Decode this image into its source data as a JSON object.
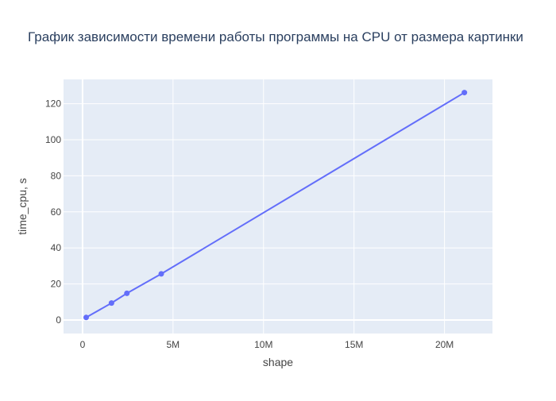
{
  "chart_data": {
    "type": "line",
    "title": "График зависимости времени работы программы на CPU от размера картинки",
    "xlabel": "shape",
    "ylabel": "time_cpu, s",
    "xlim": [
      -1050000,
      22650000
    ],
    "ylim": [
      -7.5,
      133.5
    ],
    "x_ticks": [
      {
        "value": 0,
        "label": "0"
      },
      {
        "value": 5000000,
        "label": "5M"
      },
      {
        "value": 10000000,
        "label": "10M"
      },
      {
        "value": 15000000,
        "label": "15M"
      },
      {
        "value": 20000000,
        "label": "20M"
      }
    ],
    "y_ticks": [
      {
        "value": 0,
        "label": "0"
      },
      {
        "value": 20,
        "label": "20"
      },
      {
        "value": 40,
        "label": "40"
      },
      {
        "value": 60,
        "label": "60"
      },
      {
        "value": 80,
        "label": "80"
      },
      {
        "value": 100,
        "label": "100"
      },
      {
        "value": 120,
        "label": "120"
      }
    ],
    "grid": true,
    "mode": "lines+markers",
    "series": [
      {
        "color": "#636efa",
        "points": [
          {
            "x": 200000,
            "y": 1.4
          },
          {
            "x": 1600000,
            "y": 9.4
          },
          {
            "x": 2450000,
            "y": 14.8
          },
          {
            "x": 4350000,
            "y": 25.6
          },
          {
            "x": 21100000,
            "y": 126.2
          }
        ]
      }
    ],
    "colors": {
      "plot_background": "#e5ecf6",
      "grid": "#ffffff",
      "text": "#444444",
      "title": "#2a3f5f"
    }
  }
}
